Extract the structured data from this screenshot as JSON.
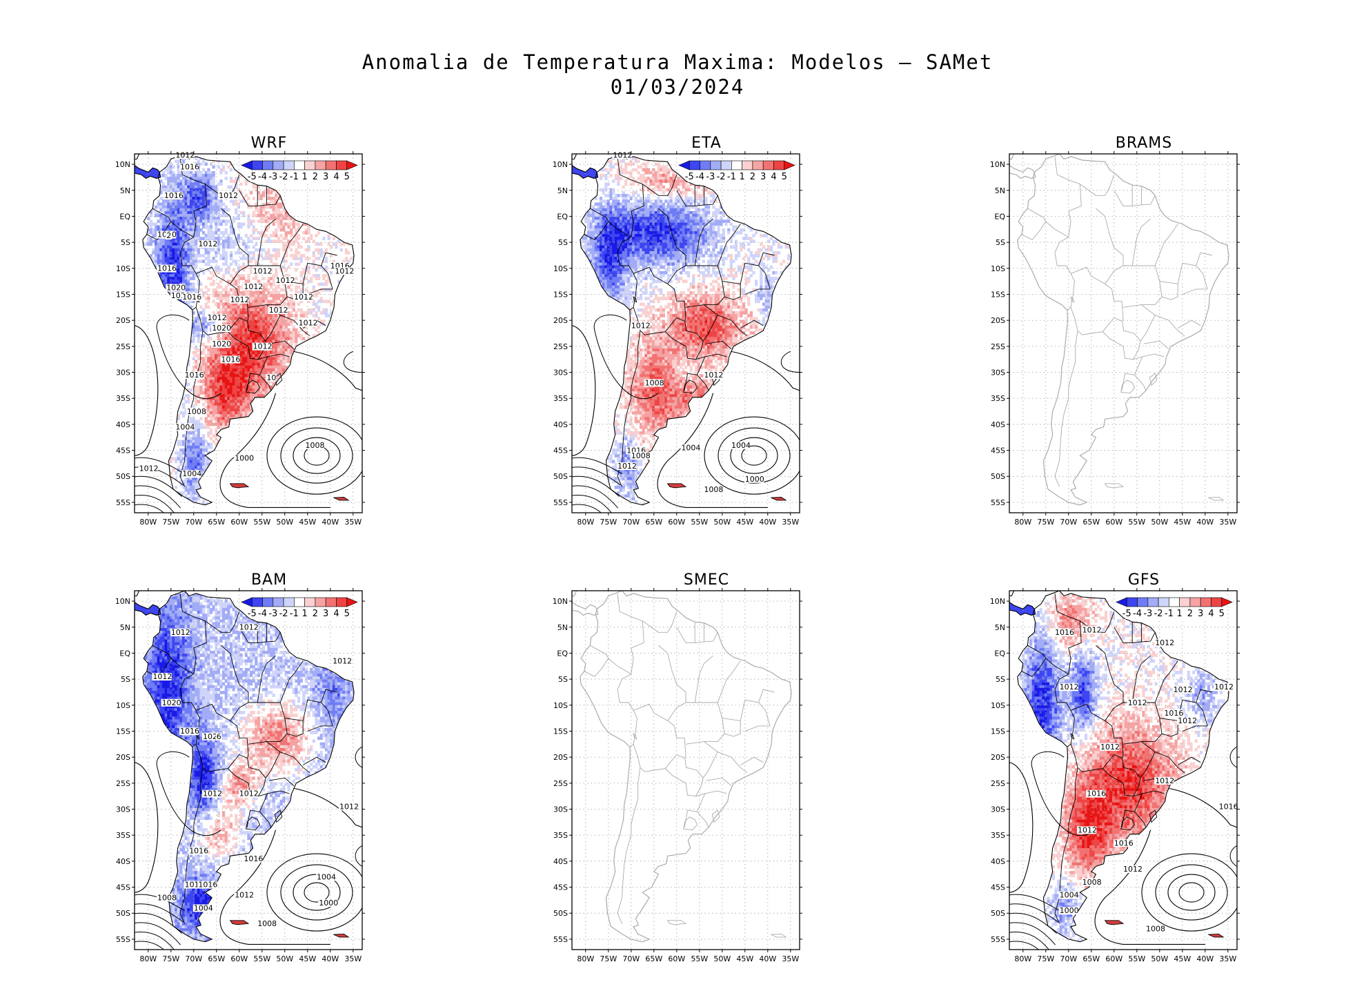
{
  "figure": {
    "title_line1": "Anomalia de Temperatura Maxima: Modelos – SAMet",
    "title_line2": "01/03/2024"
  },
  "axes": {
    "lat_ticks": [
      "10N",
      "5N",
      "EQ",
      "5S",
      "10S",
      "15S",
      "20S",
      "25S",
      "30S",
      "35S",
      "40S",
      "45S",
      "50S",
      "55S"
    ],
    "lon_ticks": [
      "80W",
      "75W",
      "70W",
      "65W",
      "60W",
      "55W",
      "50W",
      "45W",
      "40W",
      "35W"
    ]
  },
  "colorbar": {
    "labels": [
      "-5",
      "-4",
      "-3",
      "-2",
      "-1",
      "1",
      "2",
      "3",
      "4",
      "5"
    ],
    "colors": [
      "#1a1ae6",
      "#3d46f0",
      "#6f7cf5",
      "#a2acf7",
      "#cfd4fa",
      "#ffffff",
      "#fad0d0",
      "#f6a3a3",
      "#f27272",
      "#ee4444",
      "#e81414"
    ]
  },
  "panels": [
    {
      "id": "wrf",
      "title": "WRF",
      "has_data": true,
      "has_colorbar": true,
      "isobar_labels": [
        "1012",
        "1016",
        "1016",
        "1012",
        "1020",
        "2",
        "1012",
        "1016",
        "1020",
        "1020",
        "1016",
        "1012",
        "1012",
        "1012",
        "1012",
        "1012",
        "1012",
        "1012",
        "1012",
        "1016",
        "1020",
        "1012",
        "1020",
        "1016",
        "1012",
        "1016",
        "10",
        "1008",
        "1004",
        "1012",
        "1004",
        "1000",
        "1008"
      ],
      "red_strength": 0.9,
      "blue_strength": 0.75
    },
    {
      "id": "eta",
      "title": "ETA",
      "has_data": true,
      "has_colorbar": true,
      "isobar_labels": [
        "1012",
        "1012",
        "1012",
        "1008",
        "1012",
        "1016",
        "1008",
        "1012",
        "1004",
        "1004",
        "1000",
        "1008"
      ],
      "red_strength": 0.85,
      "blue_strength": 0.9
    },
    {
      "id": "brams",
      "title": "BRAMS",
      "has_data": false,
      "has_colorbar": false,
      "isobar_labels": []
    },
    {
      "id": "bam",
      "title": "BAM",
      "has_data": true,
      "has_colorbar": true,
      "isobar_labels": [
        "1012",
        "1012",
        "1012",
        "1012",
        "1020",
        "1016",
        "1020",
        "6",
        "1012",
        "1012",
        "1012",
        "1016",
        "1016",
        "1012",
        "1016",
        "1012",
        "1004",
        "1000",
        "1008",
        "1008",
        "1004"
      ],
      "red_strength": 0.7,
      "blue_strength": 0.9
    },
    {
      "id": "smec",
      "title": "SMEC",
      "has_data": false,
      "has_colorbar": false,
      "isobar_labels": []
    },
    {
      "id": "gfs",
      "title": "GFS",
      "has_data": true,
      "has_colorbar": true,
      "isobar_labels": [
        "1016",
        "1012",
        "1012",
        "1012",
        "1012",
        "1012",
        "1012",
        "1016",
        "1012",
        "1012",
        "1012",
        "1016",
        "1016",
        "1012",
        "1016",
        "1012",
        "1008",
        "1004",
        "1000",
        "1008"
      ],
      "red_strength": 0.95,
      "blue_strength": 0.85
    }
  ]
}
